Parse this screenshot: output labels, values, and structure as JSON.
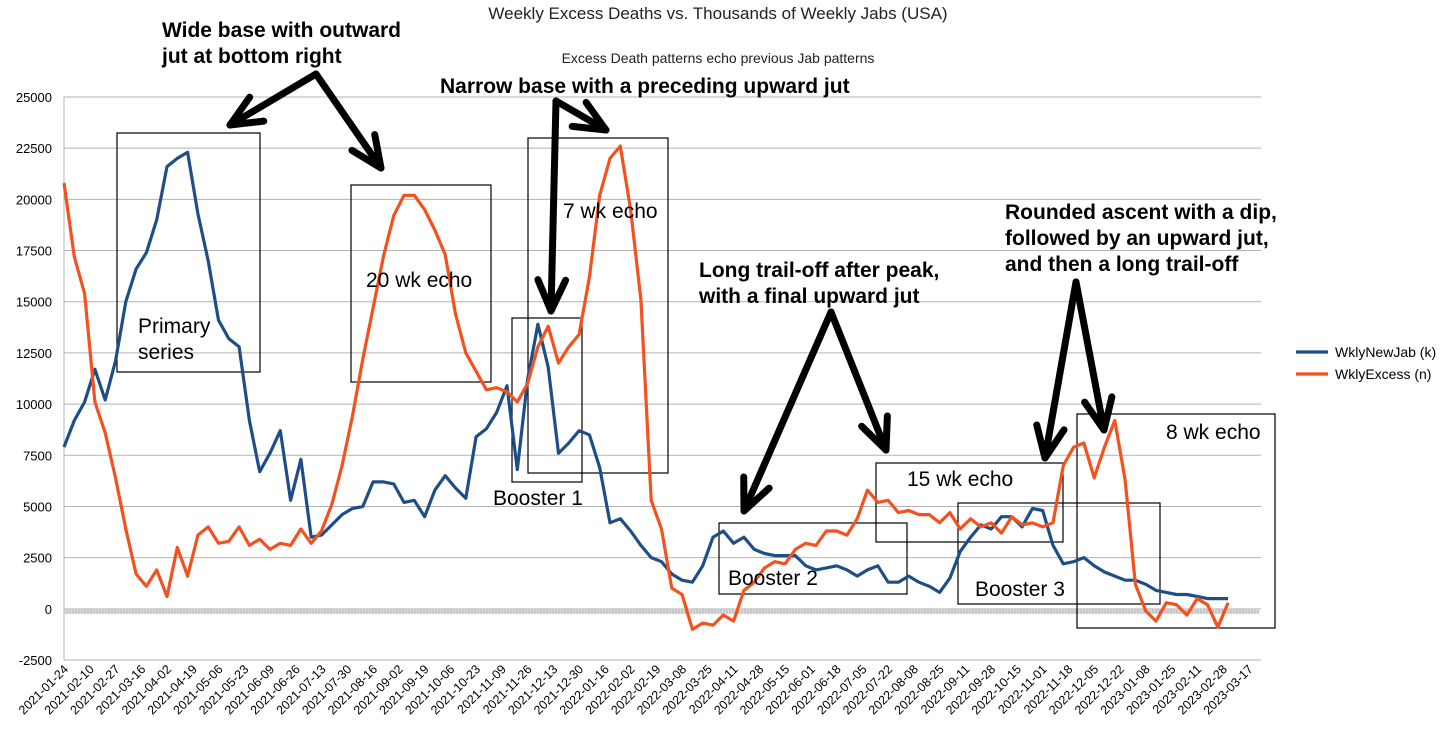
{
  "chart_data": {
    "type": "line",
    "title": "Weekly Excess Deaths vs. Thousands of Weekly Jabs (USA)",
    "subtitle": "Excess Death patterns echo previous Jab patterns",
    "ylim": [
      -2500,
      25000
    ],
    "yticks": [
      -2500,
      0,
      2500,
      5000,
      7500,
      10000,
      12500,
      15000,
      17500,
      20000,
      22500,
      25000
    ],
    "grid": true,
    "legend_position": "right",
    "x_tick_labels": [
      "2021-01-24",
      "2021-02-10",
      "2021-02-27",
      "2021-03-16",
      "2021-04-02",
      "2021-04-19",
      "2021-05-06",
      "2021-05-23",
      "2021-06-09",
      "2021-06-26",
      "2021-07-13",
      "2021-07-30",
      "2021-08-16",
      "2021-09-02",
      "2021-09-19",
      "2021-10-06",
      "2021-10-23",
      "2021-11-09",
      "2021-11-26",
      "2021-12-13",
      "2021-12-30",
      "2022-01-16",
      "2022-02-02",
      "2022-02-19",
      "2022-03-08",
      "2022-03-25",
      "2022-04-11",
      "2022-04-28",
      "2022-05-15",
      "2022-06-01",
      "2022-06-18",
      "2022-07-05",
      "2022-07-22",
      "2022-08-08",
      "2022-08-25",
      "2022-09-11",
      "2022-09-28",
      "2022-10-15",
      "2022-11-01",
      "2022-11-18",
      "2022-12-05",
      "2022-12-22",
      "2023-01-08",
      "2023-01-25",
      "2023-02-11",
      "2023-02-28",
      "2023-03-17"
    ],
    "series": [
      {
        "name": "WklyNewJab (k)",
        "color": "#1f4e87",
        "values": [
          7900,
          9200,
          10100,
          11700,
          10200,
          12100,
          15000,
          16600,
          17400,
          19000,
          21600,
          22000,
          22300,
          19300,
          17000,
          14100,
          13200,
          12800,
          9200,
          6700,
          7600,
          8700,
          5300,
          7300,
          3500,
          3600,
          4100,
          4600,
          4900,
          5000,
          6200,
          6200,
          6100,
          5200,
          5300,
          4500,
          5800,
          6500,
          5900,
          5400,
          8400,
          8800,
          9600,
          10900,
          6800,
          11200,
          13900,
          11800,
          7600,
          8100,
          8700,
          8500,
          6900,
          4200,
          4400,
          3800,
          3100,
          2500,
          2300,
          1700,
          1400,
          1300,
          2100,
          3500,
          3800,
          3200,
          3500,
          2900,
          2700,
          2600,
          2600,
          2600,
          2100,
          1900,
          2000,
          2100,
          1900,
          1600,
          1900,
          2100,
          1300,
          1300,
          1600,
          1300,
          1100,
          800,
          1500,
          2800,
          3500,
          4100,
          3900,
          4500,
          4500,
          4000,
          4900,
          4800,
          3100,
          2200,
          2300,
          2500,
          2100,
          1800,
          1600,
          1400,
          1400,
          1200,
          900,
          800,
          700,
          700,
          600,
          500,
          500,
          500
        ]
      },
      {
        "name": "WklyExcess (n)",
        "color": "#f4511e",
        "values": [
          20800,
          17200,
          15400,
          10100,
          8600,
          6400,
          3900,
          1700,
          1100,
          1900,
          600,
          3000,
          1600,
          3600,
          4000,
          3200,
          3300,
          4000,
          3100,
          3400,
          2900,
          3200,
          3100,
          3900,
          3200,
          3800,
          5100,
          7000,
          9400,
          12200,
          14700,
          17200,
          19200,
          20200,
          20200,
          19500,
          18500,
          17300,
          14400,
          12500,
          11600,
          10700,
          10800,
          10600,
          10100,
          11000,
          12800,
          13800,
          12000,
          12800,
          13400,
          16200,
          20200,
          22000,
          22600,
          19500,
          15100,
          5300,
          3900,
          1000,
          700,
          -1000,
          -700,
          -800,
          -300,
          -600,
          900,
          1300,
          2000,
          2300,
          2200,
          2900,
          3200,
          3100,
          3800,
          3800,
          3600,
          4400,
          5800,
          5200,
          5300,
          4700,
          4800,
          4600,
          4600,
          4200,
          4700,
          3900,
          4400,
          4000,
          4200,
          3700,
          4500,
          4100,
          4200,
          4000,
          4200,
          7000,
          7900,
          8100,
          6400,
          7900,
          9200,
          6300,
          1200,
          -100,
          -600,
          300,
          200,
          -300,
          500,
          200,
          -900,
          300
        ]
      }
    ],
    "annotations": [
      {
        "id": "wide-base",
        "lines": [
          "Wide base with outward",
          "jut at bottom right"
        ]
      },
      {
        "id": "narrow-base",
        "lines": [
          "Narrow base with a preceding upward jut"
        ]
      },
      {
        "id": "long-trail",
        "lines": [
          "Long trail-off after peak,",
          "with a final upward jut"
        ]
      },
      {
        "id": "rounded",
        "lines": [
          "Rounded ascent with a dip,",
          "followed by an upward jut,",
          "and then a long trail-off"
        ]
      },
      {
        "id": "primary",
        "lines": [
          "Primary",
          "series"
        ]
      },
      {
        "id": "echo20",
        "lines": [
          "20 wk echo"
        ]
      },
      {
        "id": "echo7",
        "lines": [
          "7 wk echo"
        ]
      },
      {
        "id": "echo15",
        "lines": [
          "15 wk echo"
        ]
      },
      {
        "id": "echo8",
        "lines": [
          "8 wk echo"
        ]
      },
      {
        "id": "booster1",
        "lines": [
          "Booster 1"
        ]
      },
      {
        "id": "booster2",
        "lines": [
          "Booster 2"
        ]
      },
      {
        "id": "booster3",
        "lines": [
          "Booster 3"
        ]
      }
    ]
  }
}
